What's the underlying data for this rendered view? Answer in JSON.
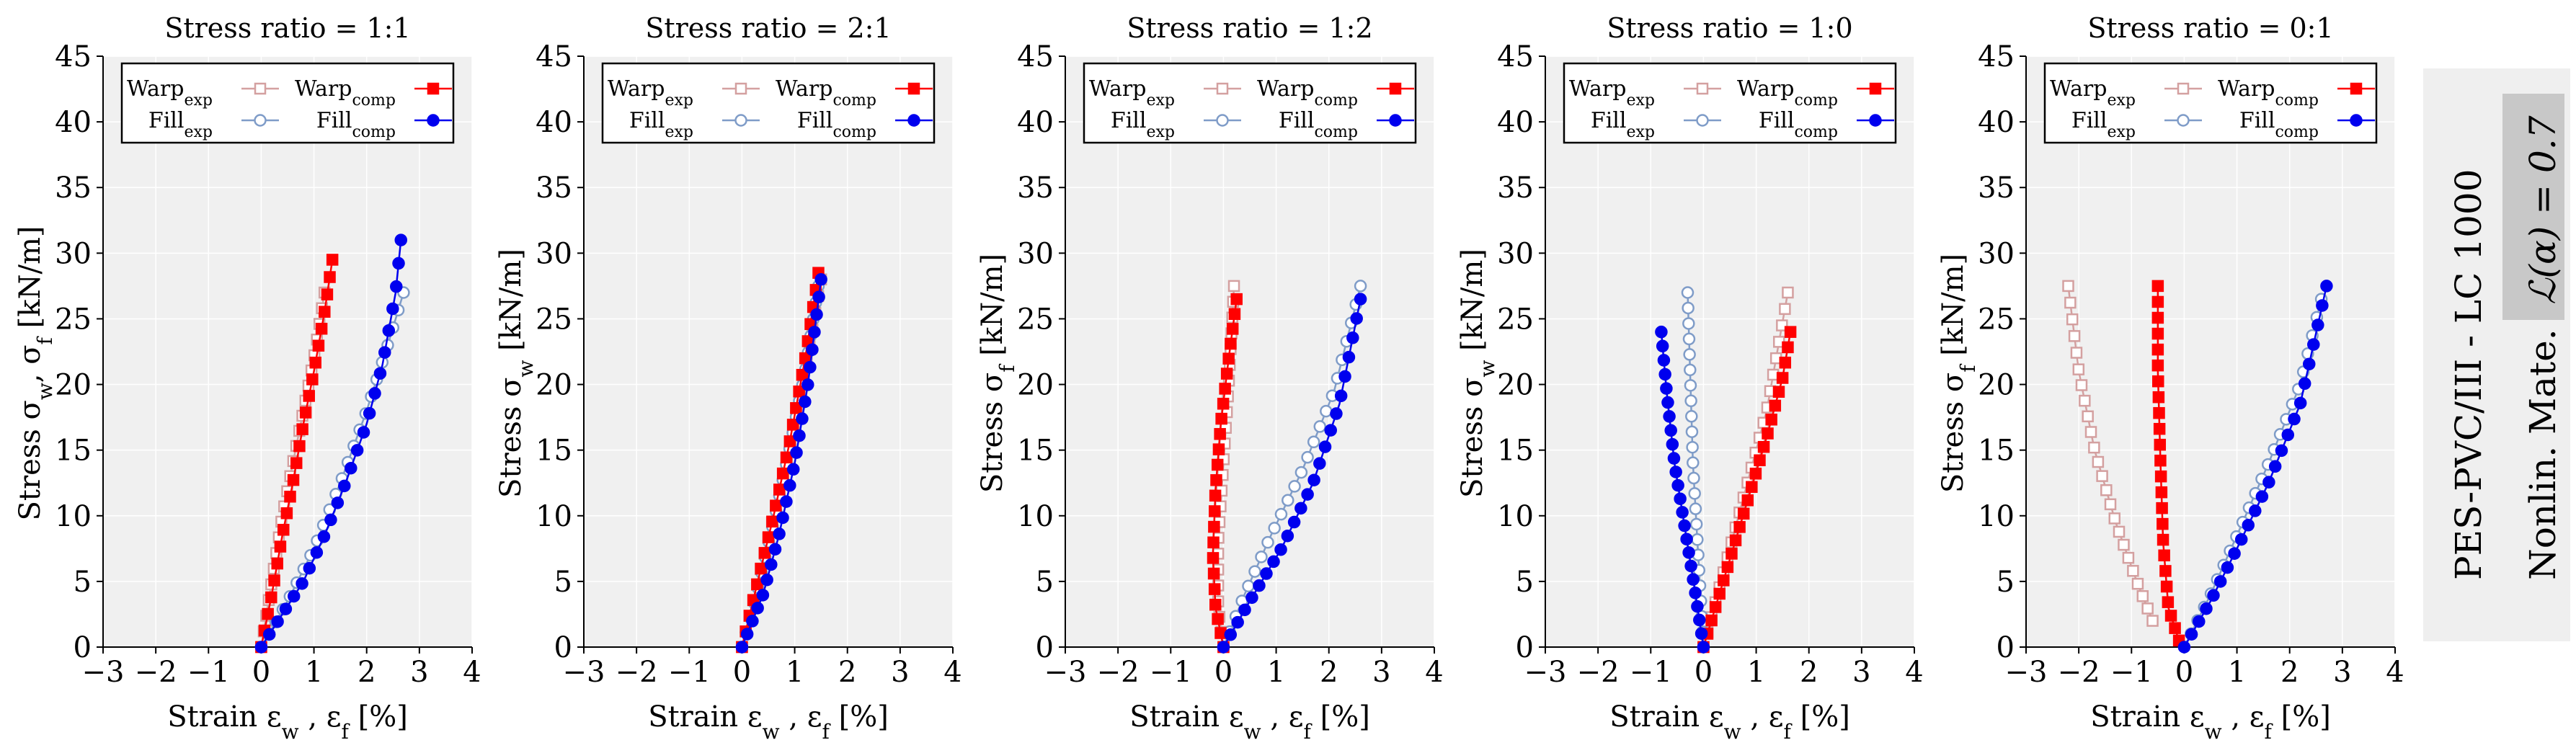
{
  "figure": {
    "side_label_main": "PES-PVC/III - LC 1000",
    "side_label_sub_prefix": "Nonlin. Mate.",
    "side_label_sub_math": "ℒ(α) = 0.7"
  },
  "legend": {
    "warp_exp": "Warp",
    "warp_exp_sub": "exp",
    "warp_comp": "Warp",
    "warp_comp_sub": "comp",
    "fill_exp": "Fill",
    "fill_exp_sub": "exp",
    "fill_comp": "Fill",
    "fill_comp_sub": "comp"
  },
  "colors": {
    "warp_exp": "#d4a0a0",
    "fill_exp": "#7f9cc8",
    "warp_comp": "#ff0000",
    "fill_comp": "#0000ee",
    "plot_bg": "#f0f0f0"
  },
  "chart_data": [
    {
      "type": "line",
      "title": "Stress ratio = 1:1",
      "xlabel": "Strain εw , εf [%]",
      "ylabel": "Stress σw, σf [kN/m]",
      "xlim": [
        -3,
        4
      ],
      "ylim": [
        0,
        45
      ],
      "xticks": [
        -3,
        -2,
        -1,
        0,
        1,
        2,
        3,
        4
      ],
      "yticks": [
        0,
        5,
        10,
        15,
        20,
        25,
        30,
        35,
        40,
        45
      ],
      "series": [
        {
          "name": "Warp exp",
          "x": [
            0,
            0.2,
            0.4,
            0.6,
            0.8,
            1.0,
            1.2
          ],
          "y": [
            0,
            5,
            10,
            14,
            18,
            22,
            27
          ]
        },
        {
          "name": "Fill exp",
          "x": [
            0,
            0.5,
            1.0,
            1.5,
            2.0,
            2.4,
            2.7
          ],
          "y": [
            0,
            3.5,
            7.5,
            12.5,
            18,
            23,
            27
          ]
        },
        {
          "name": "Warp comp",
          "x": [
            0,
            0.2,
            0.4,
            0.6,
            0.8,
            1.0,
            1.2,
            1.35
          ],
          "y": [
            0,
            4,
            8.5,
            12.5,
            17,
            21,
            25.5,
            29.5
          ]
        },
        {
          "name": "Fill comp",
          "x": [
            0,
            0.4,
            0.8,
            1.2,
            1.6,
            2.0,
            2.3,
            2.55,
            2.65
          ],
          "y": [
            0,
            2.5,
            5,
            8.5,
            12.5,
            17,
            21.5,
            27,
            31
          ]
        }
      ]
    },
    {
      "type": "line",
      "title": "Stress ratio = 2:1",
      "xlabel": "Strain εw , εf [%]",
      "ylabel": "Stress σw [kN/m]",
      "xlim": [
        -3,
        4
      ],
      "ylim": [
        0,
        45
      ],
      "xticks": [
        -3,
        -2,
        -1,
        0,
        1,
        2,
        3,
        4
      ],
      "yticks": [
        0,
        5,
        10,
        15,
        20,
        25,
        30,
        35,
        40,
        45
      ],
      "series": [
        {
          "name": "Warp exp",
          "x": [
            0,
            0.3,
            0.6,
            0.9,
            1.2,
            1.5
          ],
          "y": [
            0,
            5,
            10,
            15,
            21,
            28
          ]
        },
        {
          "name": "Fill exp",
          "x": [
            0,
            0.3,
            0.6,
            0.9,
            1.2,
            1.45
          ],
          "y": [
            0,
            4.5,
            9.5,
            15,
            21,
            27.5
          ]
        },
        {
          "name": "Warp comp",
          "x": [
            0,
            0.3,
            0.6,
            0.9,
            1.2,
            1.45
          ],
          "y": [
            0,
            5,
            10,
            15.5,
            22,
            28.5
          ]
        },
        {
          "name": "Fill comp",
          "x": [
            0,
            0.4,
            0.7,
            1.0,
            1.25,
            1.5
          ],
          "y": [
            0,
            4,
            8.5,
            14,
            20,
            28
          ]
        }
      ]
    },
    {
      "type": "line",
      "title": "Stress ratio = 1:2",
      "xlabel": "Strain εw , εf [%]",
      "ylabel": "Stress σf [kN/m]",
      "xlim": [
        -3,
        4
      ],
      "ylim": [
        0,
        45
      ],
      "xticks": [
        -3,
        -2,
        -1,
        0,
        1,
        2,
        3,
        4
      ],
      "yticks": [
        0,
        5,
        10,
        15,
        20,
        25,
        30,
        35,
        40,
        45
      ],
      "series": [
        {
          "name": "Warp exp",
          "x": [
            0,
            -0.1,
            -0.1,
            0,
            0.1,
            0.2
          ],
          "y": [
            0,
            3,
            8,
            14,
            20,
            27.5
          ]
        },
        {
          "name": "Fill exp",
          "x": [
            0,
            0.4,
            0.9,
            1.5,
            2.1,
            2.6
          ],
          "y": [
            0,
            4,
            8.5,
            13.5,
            19.5,
            27.5
          ]
        },
        {
          "name": "Warp comp",
          "x": [
            0,
            -0.15,
            -0.2,
            -0.15,
            -0.05,
            0.1,
            0.25
          ],
          "y": [
            0,
            3,
            7,
            12,
            17,
            22,
            26.5
          ]
        },
        {
          "name": "Fill comp",
          "x": [
            0,
            0.5,
            1.1,
            1.7,
            2.2,
            2.6
          ],
          "y": [
            0,
            3.5,
            7.5,
            12.5,
            18.5,
            26.5
          ]
        }
      ]
    },
    {
      "type": "line",
      "title": "Stress ratio = 1:0",
      "xlabel": "Strain εw , εf [%]",
      "ylabel": "Stress σw [kN/m]",
      "xlim": [
        -3,
        4
      ],
      "ylim": [
        0,
        45
      ],
      "xticks": [
        -3,
        -2,
        -1,
        0,
        1,
        2,
        3,
        4
      ],
      "yticks": [
        0,
        5,
        10,
        15,
        20,
        25,
        30,
        35,
        40,
        45
      ],
      "series": [
        {
          "name": "Warp exp",
          "x": [
            0,
            0.3,
            0.6,
            0.9,
            1.2,
            1.4,
            1.6
          ],
          "y": [
            0,
            4.5,
            9,
            13.5,
            18,
            22.5,
            27
          ]
        },
        {
          "name": "Fill exp",
          "x": [
            0,
            -0.1,
            -0.2,
            -0.25,
            -0.3
          ],
          "y": [
            0,
            7,
            14,
            20.5,
            27
          ]
        },
        {
          "name": "Warp comp",
          "x": [
            0,
            0.3,
            0.6,
            0.9,
            1.2,
            1.5,
            1.65
          ],
          "y": [
            0,
            4,
            8,
            12,
            16,
            20.5,
            24
          ]
        },
        {
          "name": "Fill comp",
          "x": [
            0,
            -0.15,
            -0.35,
            -0.55,
            -0.7,
            -0.8
          ],
          "y": [
            0,
            4,
            9,
            14,
            19.5,
            24
          ]
        }
      ]
    },
    {
      "type": "line",
      "title": "Stress ratio = 0:1",
      "xlabel": "Strain εw , εf [%]",
      "ylabel": "Stress σf [kN/m]",
      "xlim": [
        -3,
        4
      ],
      "ylim": [
        0,
        45
      ],
      "xticks": [
        -3,
        -2,
        -1,
        0,
        1,
        2,
        3,
        4
      ],
      "yticks": [
        0,
        5,
        10,
        15,
        20,
        25,
        30,
        35,
        40,
        45
      ],
      "series": [
        {
          "name": "Warp exp",
          "x": [
            -0.6,
            -0.9,
            -1.3,
            -1.7,
            -2.0,
            -2.2
          ],
          "y": [
            2,
            5,
            9.5,
            15,
            21,
            27.5
          ]
        },
        {
          "name": "Fill exp",
          "x": [
            0,
            0.5,
            1.0,
            1.6,
            2.2,
            2.6
          ],
          "y": [
            0,
            4,
            8.5,
            14,
            20,
            26.5
          ]
        },
        {
          "name": "Warp comp",
          "x": [
            -0.1,
            -0.3,
            -0.4,
            -0.45,
            -0.5,
            -0.5
          ],
          "y": [
            0.5,
            3,
            8,
            14,
            21,
            27.5
          ]
        },
        {
          "name": "Fill comp",
          "x": [
            0,
            0.5,
            1.0,
            1.6,
            2.2,
            2.7
          ],
          "y": [
            0,
            3.5,
            7.5,
            12.5,
            18.5,
            27.5
          ]
        }
      ]
    }
  ]
}
